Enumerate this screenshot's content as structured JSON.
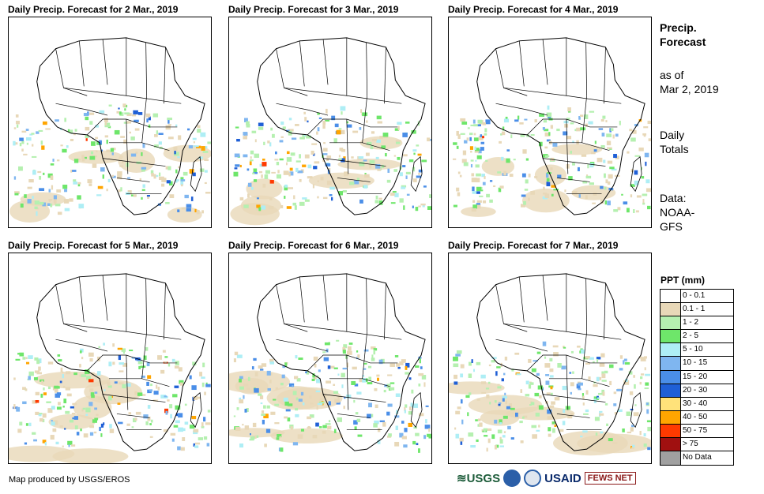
{
  "panels": [
    {
      "title": "Daily Precip. Forecast for 2 Mar., 2019"
    },
    {
      "title": "Daily Precip. Forecast for 3 Mar., 2019"
    },
    {
      "title": "Daily Precip. Forecast for 4 Mar., 2019"
    },
    {
      "title": "Daily Precip. Forecast for 5 Mar., 2019"
    },
    {
      "title": "Daily Precip. Forecast for 6 Mar., 2019"
    },
    {
      "title": "Daily Precip. Forecast for 7 Mar., 2019"
    }
  ],
  "sidebar": {
    "title_line1": "Precip.",
    "title_line2": "Forecast",
    "asof_line1": "as of",
    "asof_line2": "Mar 2, 2019",
    "totals_line1": "Daily",
    "totals_line2": "Totals",
    "data_line1": "Data:",
    "data_line2": "NOAA-",
    "data_line3": "GFS"
  },
  "legend": {
    "title": "PPT (mm)",
    "items": [
      {
        "label": "0 - 0.1",
        "color": "#ffffff"
      },
      {
        "label": "0.1 - 1",
        "color": "#e8d8b8"
      },
      {
        "label": "1 - 2",
        "color": "#b5f0b0"
      },
      {
        "label": "2 - 5",
        "color": "#6ee66a"
      },
      {
        "label": "5 - 10",
        "color": "#aeeef5"
      },
      {
        "label": "10 - 15",
        "color": "#7fb6f0"
      },
      {
        "label": "15 - 20",
        "color": "#4a8ee8"
      },
      {
        "label": "20 - 30",
        "color": "#1f5fd6"
      },
      {
        "label": "30 - 40",
        "color": "#ffe27a"
      },
      {
        "label": "40 - 50",
        "color": "#ffa500"
      },
      {
        "label": "50 - 75",
        "color": "#ff3a00"
      },
      {
        "label": "> 75",
        "color": "#a01010"
      },
      {
        "label": "No Data",
        "color": "#a0a0a0"
      }
    ]
  },
  "footer": {
    "credit": "Map produced by USGS/EROS",
    "logo_usgs": "USGS",
    "logo_usaid": "USAID",
    "logo_fews": "FEWS NET"
  }
}
